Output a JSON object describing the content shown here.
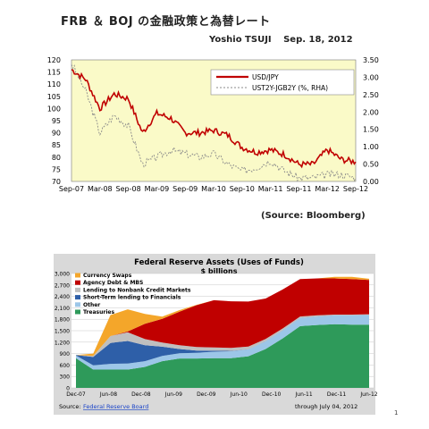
{
  "page": {
    "title": "FRB ＆ BOJ の金融政策と為替レート",
    "byline": "Yoshio TSUJI　 Sep. 18, 2012",
    "source": "(Source: Bloomberg)",
    "page_number": "1"
  },
  "colors": {
    "bg_chart1": "#fafac8",
    "usd_jpy": "#c00000",
    "spread": "#8a8a8a",
    "currency_swaps": "#f4a62a",
    "agency_debt_mbs": "#c00000",
    "lending_nonbank": "#bfbfbf",
    "short_term_lending": "#2e5fa8",
    "other": "#9cc6e8",
    "treasuries": "#2e9a5a"
  },
  "chart_data": [
    {
      "type": "line",
      "title": "",
      "x_ticks": [
        "Sep-07",
        "Mar-08",
        "Sep-08",
        "Mar-09",
        "Sep-09",
        "Mar-10",
        "Sep-10",
        "Mar-11",
        "Sep-11",
        "Mar-12",
        "Sep-12"
      ],
      "x": [
        "2007-09",
        "2007-12",
        "2008-03",
        "2008-06",
        "2008-09",
        "2008-12",
        "2009-03",
        "2009-06",
        "2009-09",
        "2009-12",
        "2010-03",
        "2010-06",
        "2010-09",
        "2010-12",
        "2011-03",
        "2011-06",
        "2011-09",
        "2011-12",
        "2012-03",
        "2012-06",
        "2012-09"
      ],
      "y_left_ticks": [
        "70",
        "75",
        "80",
        "85",
        "90",
        "95",
        "100",
        "105",
        "110",
        "115",
        "120"
      ],
      "y_right_ticks": [
        "0.00",
        "0.50",
        "1.00",
        "1.50",
        "2.00",
        "2.50",
        "3.00",
        "3.50"
      ],
      "ylim_left": [
        70,
        120
      ],
      "ylim_right": [
        0,
        3.5
      ],
      "legend_position": "top-right",
      "series": [
        {
          "name": "USD/JPY",
          "axis": "left",
          "values": [
            116,
            112,
            100,
            106,
            104,
            90,
            98,
            96,
            90,
            90,
            91,
            89,
            84,
            82,
            83,
            81,
            77,
            77,
            83,
            79,
            78
          ]
        },
        {
          "name": "UST2Y-JGB2Y (%, RHA)",
          "axis": "right",
          "values": [
            3.4,
            2.6,
            1.4,
            1.9,
            1.6,
            0.5,
            0.7,
            0.9,
            0.8,
            0.7,
            0.8,
            0.5,
            0.3,
            0.4,
            0.6,
            0.3,
            0.1,
            0.1,
            0.2,
            0.2,
            0.1
          ]
        }
      ]
    },
    {
      "type": "area",
      "title": "Federal Reserve Assets (Uses of Funds)",
      "subtitle": "$ billions",
      "x_ticks": [
        "Dec-07",
        "Jun-08",
        "Dec-08",
        "Jun-09",
        "Dec-09",
        "Jun-10",
        "Dec-10",
        "Jun-11",
        "Dec-11",
        "Jun-12"
      ],
      "y_ticks": [
        "0",
        "300",
        "600",
        "900",
        "1,200",
        "1,500",
        "1,800",
        "2,100",
        "2,400",
        "2,700",
        "3,000"
      ],
      "ylim": [
        0,
        3000
      ],
      "legend_position": "top-left",
      "source_label": "Source:",
      "source_link": "Federal Reserve Board",
      "through": "through July 04, 2012",
      "x": [
        "Dec-07",
        "Jun-08",
        "Sep-08",
        "Dec-08",
        "Mar-09",
        "Jun-09",
        "Sep-09",
        "Dec-09",
        "Mar-10",
        "Jun-10",
        "Sep-10",
        "Dec-10",
        "Mar-11",
        "Jun-11",
        "Sep-11",
        "Dec-11",
        "Mar-12",
        "Jun-12"
      ],
      "series": [
        {
          "name": "Treasuries",
          "values": [
            780,
            480,
            480,
            480,
            550,
            700,
            770,
            770,
            780,
            780,
            830,
            1020,
            1300,
            1620,
            1650,
            1670,
            1660,
            1660
          ]
        },
        {
          "name": "Other",
          "values": [
            70,
            110,
            150,
            160,
            150,
            140,
            140,
            150,
            170,
            180,
            180,
            200,
            210,
            210,
            220,
            230,
            240,
            250
          ]
        },
        {
          "name": "Short-Term lending to Financials",
          "values": [
            10,
            220,
            550,
            590,
            420,
            240,
            110,
            60,
            25,
            10,
            5,
            3,
            2,
            2,
            2,
            2,
            2,
            2
          ]
        },
        {
          "name": "Lending to Nonbank Credit Markets",
          "values": [
            0,
            30,
            180,
            230,
            160,
            110,
            100,
            90,
            85,
            80,
            70,
            60,
            50,
            40,
            30,
            20,
            20,
            20
          ]
        },
        {
          "name": "Agency Debt & MBS",
          "values": [
            0,
            0,
            0,
            20,
            400,
            620,
            880,
            1100,
            1240,
            1220,
            1180,
            1060,
            1020,
            980,
            970,
            950,
            930,
            900
          ]
        },
        {
          "name": "Currency Swaps",
          "values": [
            0,
            60,
            550,
            580,
            260,
            60,
            40,
            10,
            0,
            0,
            0,
            0,
            0,
            0,
            0,
            40,
            60,
            30
          ]
        }
      ]
    }
  ]
}
